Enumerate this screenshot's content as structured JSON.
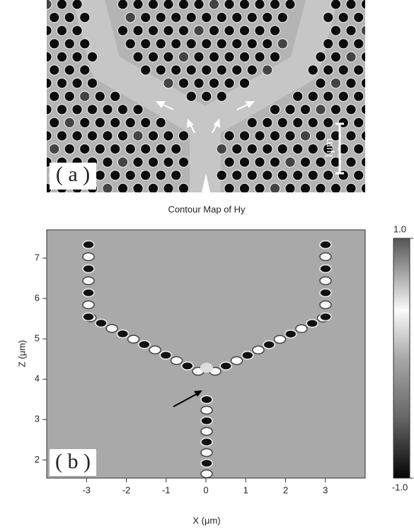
{
  "panel_a": {
    "label": "( a )",
    "scale_bar_label": "1μm"
  },
  "panel_b": {
    "title": "Contour Map of Hy",
    "label": "( b )",
    "xlabel": "X (μm)",
    "ylabel": "Z (μm)",
    "xlim": [
      -4,
      4
    ],
    "ylim": [
      1.55,
      7.7
    ],
    "xticks": [
      -3,
      -2,
      -1,
      0,
      1,
      2,
      3
    ],
    "yticks": [
      2,
      3,
      4,
      5,
      6,
      7
    ],
    "colorbar": {
      "lim": [
        -1,
        1
      ],
      "ticks": [
        {
          "value": 1,
          "label": "1.0"
        },
        {
          "value": -1,
          "label": "-1.0"
        }
      ]
    }
  }
}
